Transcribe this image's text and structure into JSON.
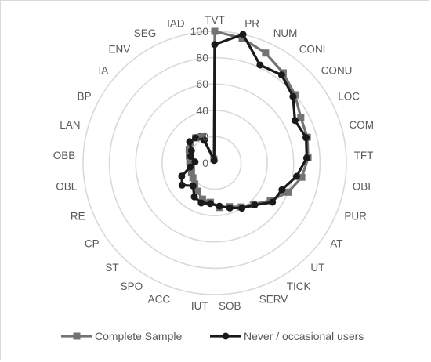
{
  "chart_data": {
    "type": "radar",
    "title": "",
    "categories": [
      "TVT",
      "PR",
      "NUM",
      "CONI",
      "CONU",
      "LOC",
      "COM",
      "TFT",
      "OBI",
      "PUR",
      "AT",
      "UT",
      "TICK",
      "SERV",
      "SOB",
      "IUT",
      "ACC",
      "SPO",
      "ST",
      "CP",
      "RE",
      "OBL",
      "OBB",
      "LAN",
      "BP",
      "IA",
      "ENV",
      "SEG",
      "IAD"
    ],
    "rlim": [
      0,
      100
    ],
    "ticks": [
      0,
      20,
      40,
      60,
      80,
      100
    ],
    "tick_labels": [
      "0",
      "20",
      "40",
      "60",
      "80",
      "100"
    ],
    "grid": true,
    "legend_position": "bottom",
    "series": [
      {
        "name": "Complete Sample",
        "color": "#737373",
        "marker": "square",
        "values": [
          100,
          97,
          92,
          86,
          80,
          74,
          73,
          71,
          67,
          60,
          51,
          43,
          39,
          35,
          34,
          30,
          29,
          25,
          22,
          20,
          19,
          18,
          19,
          20,
          22,
          24,
          24,
          22,
          3
        ]
      },
      {
        "name": "Never / occasional users",
        "color": "#1a1a1a",
        "marker": "circle",
        "values": [
          90,
          100,
          82,
          84,
          78,
          69,
          72,
          70,
          63,
          55,
          53,
          44,
          40,
          36,
          33,
          31,
          32,
          30,
          24,
          30,
          27,
          19,
          15,
          19,
          20,
          25,
          24,
          19,
          2
        ]
      }
    ]
  }
}
